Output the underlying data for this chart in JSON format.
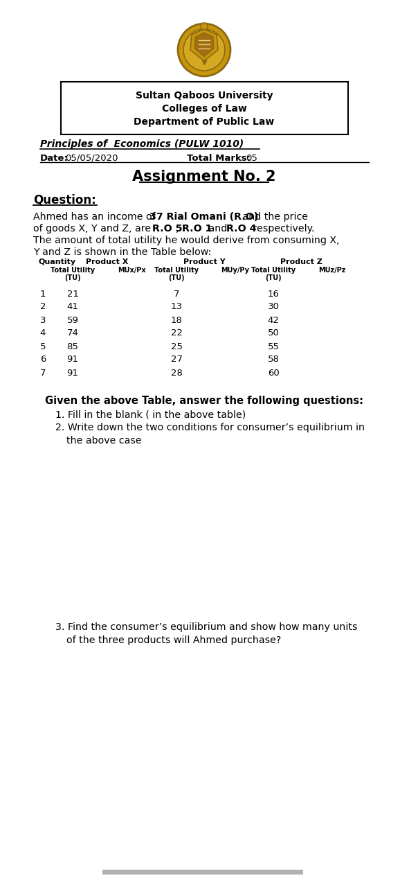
{
  "university": "Sultan Qaboos University",
  "college": "Colleges of Law",
  "department": "Department of Public Law",
  "course": "Principles of  Economics (PULW 1010)",
  "date_label": "Date:",
  "date_value": "05/05/2020",
  "marks_label": "Total Marks:",
  "marks_value": "05",
  "assignment_title": "Assignment No. 2",
  "question_label": "Question:",
  "q_line1_plain": "Ahmed has an income of ",
  "q_line1_bold": "37 Rial Omani (R.O)",
  "q_line1_end": " and the price",
  "q_line2_plain": "of goods X, Y and Z, are ",
  "q_line2_b1": "R.O 5",
  "q_line2_m1": ", ",
  "q_line2_b2": "R.O 1",
  "q_line2_m2": " and ",
  "q_line2_b3": "R.O 4",
  "q_line2_end": " respectively.",
  "q_line3": "The amount of total utility he would derive from consuming X,",
  "q_line4": "Y and Z is shown in the Table below:",
  "table_data": [
    [
      "1",
      "21",
      "7",
      "16"
    ],
    [
      "2",
      "41",
      "13",
      "30"
    ],
    [
      "3",
      "59",
      "18",
      "42"
    ],
    [
      "4",
      "74",
      "22",
      "50"
    ],
    [
      "5",
      "85",
      "25",
      "55"
    ],
    [
      "6",
      "91",
      "27",
      "58"
    ],
    [
      "7",
      "91",
      "28",
      "60"
    ]
  ],
  "given_text": "Given the above Table, answer the following questions:",
  "q1": "1. Fill in the blank ( in the above table)",
  "q2a": "2. Write down the two conditions for consumer’s equilibrium in",
  "q2b": "   the above case",
  "q3a": "3. Find the consumer’s equilibrium and show how many units",
  "q3b": "   of the three products will Ahmed purchase?",
  "bg_color": "#ffffff",
  "text_color": "#000000",
  "shield_gold": "#c8960c",
  "shield_dark": "#8B6914",
  "shield_inner": "#d4a820",
  "bottom_bar_color": "#b0b0b0"
}
